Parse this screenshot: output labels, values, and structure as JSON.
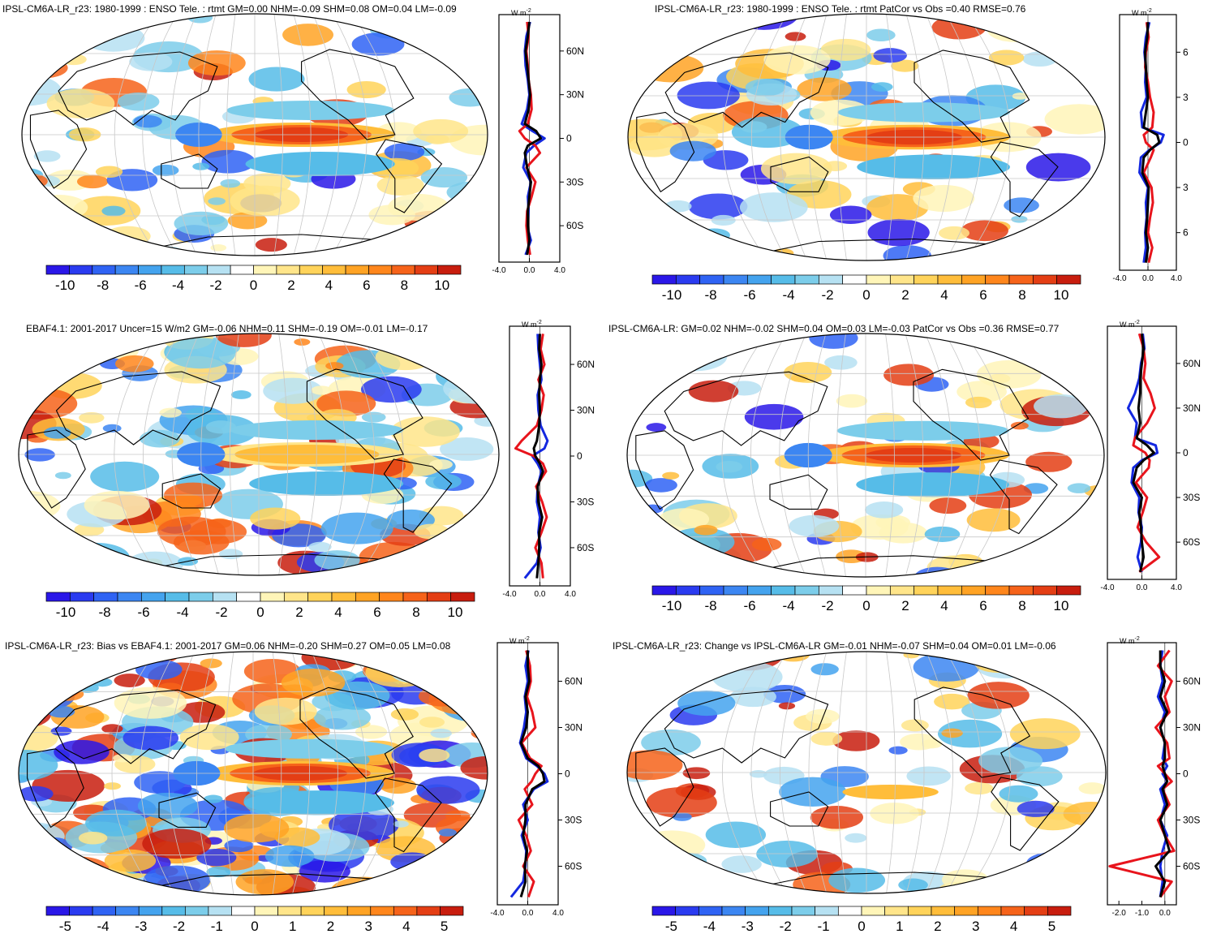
{
  "colors": {
    "palette": [
      "#2a17e8",
      "#2a3bf0",
      "#2f63f4",
      "#3c86f2",
      "#44a3ee",
      "#56bce8",
      "#7ccdea",
      "#b6e1f2",
      "#ffffff",
      "#fff5b8",
      "#ffe58a",
      "#ffd35a",
      "#ffbd3a",
      "#ffa324",
      "#ff861c",
      "#f6631a",
      "#e43e14",
      "#c81d0e"
    ],
    "land_line": "#000000",
    "grid": "#c8c8c8",
    "model_line": "#e8141c",
    "obs_line": "#1428e0",
    "total_line": "#000000"
  },
  "unit_label": "W m",
  "unit_exp": "-2",
  "chart_data": [
    {
      "id": "p1",
      "type": "heatmap",
      "title": "IPSL-CM6A-LR_r23: 1980-1999 : ENSO Tele. : rtmt GM=0.00 NHM=-0.09 SHM=0.08 OM=0.04 LM=-0.09",
      "colorbar": {
        "levels": [
          "-10",
          "-8",
          "-6",
          "-4",
          "-2",
          "0",
          "2",
          "4",
          "6",
          "8",
          "10"
        ],
        "range": [
          -11,
          11
        ]
      },
      "zonal": {
        "xlim": [
          -4.0,
          4.0
        ],
        "xticks": [
          "-4.0",
          "0.0",
          "4.0"
        ],
        "yticks": [
          "60N",
          "30N",
          "0",
          "30S",
          "60S"
        ],
        "lat": [
          80,
          70,
          60,
          50,
          40,
          30,
          20,
          10,
          5,
          0,
          -5,
          -10,
          -20,
          -30,
          -40,
          -50,
          -60,
          -70,
          -80
        ],
        "series": [
          {
            "name": "ocean",
            "values": [
              0.1,
              -0.4,
              -0.6,
              -0.5,
              -0.2,
              0.0,
              -0.3,
              -1.0,
              0.4,
              2.0,
              0.6,
              -0.4,
              -0.8,
              0.2,
              -0.2,
              -0.1,
              -0.3,
              0.2,
              -0.5
            ]
          },
          {
            "name": "land",
            "values": [
              -0.3,
              -0.1,
              -0.4,
              -0.2,
              -0.1,
              0.2,
              0.3,
              -0.2,
              -1.3,
              -0.6,
              0.8,
              1.4,
              -0.4,
              0.8,
              0.3,
              -0.3,
              -0.4,
              -0.2,
              0.1
            ]
          },
          {
            "name": "total",
            "values": [
              0.0,
              -0.2,
              -0.5,
              -0.3,
              -0.1,
              0.1,
              -0.1,
              -0.6,
              0.9,
              1.5,
              -0.2,
              -0.6,
              -0.3,
              0.2,
              0.0,
              -0.2,
              -0.2,
              0.0,
              -0.3
            ]
          }
        ]
      }
    },
    {
      "id": "p2",
      "type": "heatmap",
      "title": "IPSL-CM6A-LR_r23: 1980-1999 : ENSO Tele. : rtmt PatCor vs Obs =0.40 RMSE=0.76",
      "colorbar": {
        "levels": [
          "-10",
          "-8",
          "-6",
          "-4",
          "-2",
          "0",
          "2",
          "4",
          "6",
          "8",
          "10"
        ],
        "range": [
          -11,
          11
        ]
      },
      "zonal": {
        "xlim": [
          -4.0,
          4.0
        ],
        "xticks": [
          "-4.0",
          "0.0",
          "4.0"
        ],
        "yticks": [
          "6",
          "3",
          "0",
          "3",
          "6"
        ],
        "lat": [
          80,
          70,
          60,
          50,
          40,
          30,
          20,
          10,
          5,
          0,
          -5,
          -10,
          -20,
          -30,
          -40,
          -50,
          -60,
          -70,
          -80
        ],
        "series": [
          {
            "name": "ocean",
            "values": [
              0.2,
              -0.3,
              -0.5,
              -0.3,
              -0.4,
              -0.2,
              -1.0,
              -0.8,
              2.2,
              1.8,
              0.2,
              -1.0,
              -1.2,
              0.0,
              -0.3,
              -0.2,
              -0.4,
              -0.3,
              -0.6
            ]
          },
          {
            "name": "land",
            "values": [
              -0.2,
              0.1,
              -0.3,
              -0.4,
              0.0,
              0.3,
              0.8,
              0.6,
              -0.6,
              -0.3,
              0.8,
              0.4,
              -0.6,
              0.5,
              0.7,
              0.3,
              0.0,
              0.6,
              0.1
            ]
          },
          {
            "name": "total",
            "values": [
              0.0,
              -0.1,
              -0.4,
              -0.3,
              -0.2,
              0.0,
              -0.3,
              -0.6,
              1.3,
              1.6,
              0.3,
              -0.6,
              -0.8,
              0.1,
              0.0,
              -0.1,
              -0.3,
              0.0,
              -0.3
            ]
          }
        ]
      }
    },
    {
      "id": "p3",
      "type": "heatmap",
      "title": "EBAF4.1: 2001-2017 Uncer=15 W/m2 GM=-0.06 NHM=0.11 SHM=-0.19 OM=-0.01 LM=-0.17",
      "colorbar": {
        "levels": [
          "-10",
          "-8",
          "-6",
          "-4",
          "-2",
          "0",
          "2",
          "4",
          "6",
          "8",
          "10"
        ],
        "range": [
          -11,
          11
        ]
      },
      "zonal": {
        "xlim": [
          -4.0,
          4.0
        ],
        "xticks": [
          "-4.0",
          "0.0",
          "4.0"
        ],
        "yticks": [
          "60N",
          "30N",
          "0",
          "30S",
          "60S"
        ],
        "lat": [
          80,
          70,
          60,
          50,
          40,
          30,
          20,
          10,
          5,
          0,
          -5,
          -10,
          -20,
          -30,
          -40,
          -50,
          -60,
          -70,
          -80
        ],
        "series": [
          {
            "name": "ocean",
            "values": [
              -0.3,
              -0.2,
              0.0,
              0.2,
              -0.3,
              -0.2,
              0.1,
              1.0,
              0.6,
              -1.0,
              -0.3,
              0.2,
              -0.3,
              -0.4,
              0.0,
              -0.2,
              0.1,
              -0.4,
              -2.0
            ]
          },
          {
            "name": "land",
            "values": [
              0.4,
              0.1,
              0.6,
              -0.2,
              0.5,
              0.2,
              -0.4,
              -2.4,
              -3.2,
              -0.8,
              0.4,
              0.8,
              -0.5,
              0.3,
              0.9,
              0.2,
              -0.6,
              0.2,
              0.4
            ]
          },
          {
            "name": "total",
            "values": [
              0.0,
              -0.1,
              0.2,
              0.0,
              -0.1,
              0.0,
              -0.1,
              -0.4,
              -0.8,
              -0.6,
              0.0,
              0.4,
              -0.3,
              -0.2,
              0.3,
              -0.1,
              -0.1,
              -0.2,
              -0.4
            ]
          }
        ]
      }
    },
    {
      "id": "p4",
      "type": "heatmap",
      "title": "IPSL-CM6A-LR: GM=0.02 NHM=-0.02 SHM=0.04 OM=0.03 LM=-0.03 PatCor vs Obs =0.36 RMSE=0.77",
      "colorbar": {
        "levels": [
          "-10",
          "-8",
          "-6",
          "-4",
          "-2",
          "0",
          "2",
          "4",
          "6",
          "8",
          "10"
        ],
        "range": [
          -11,
          11
        ]
      },
      "zonal": {
        "xlim": [
          -4.0,
          4.0
        ],
        "xticks": [
          "-4.0",
          "0.0",
          "4.0"
        ],
        "yticks": [
          "60N",
          "30N",
          "0",
          "30S",
          "60S"
        ],
        "lat": [
          80,
          70,
          60,
          50,
          40,
          30,
          20,
          10,
          5,
          0,
          -5,
          -10,
          -20,
          -30,
          -40,
          -50,
          -60,
          -70,
          -80
        ],
        "series": [
          {
            "name": "ocean",
            "values": [
              0.1,
              0.3,
              -0.1,
              -0.3,
              -0.8,
              -1.6,
              -0.6,
              -0.8,
              1.6,
              1.8,
              0.0,
              -1.0,
              -1.2,
              -0.3,
              -0.4,
              0.0,
              -0.1,
              -0.5,
              0.0
            ]
          },
          {
            "name": "land",
            "values": [
              -0.3,
              0.2,
              0.4,
              0.2,
              1.0,
              1.5,
              0.6,
              -0.8,
              -1.0,
              0.4,
              0.9,
              0.8,
              -0.7,
              0.6,
              0.1,
              -0.5,
              0.5,
              2.0,
              -0.3
            ]
          },
          {
            "name": "total",
            "values": [
              0.0,
              0.2,
              0.0,
              -0.2,
              -0.2,
              -0.4,
              -0.2,
              -0.6,
              0.6,
              1.4,
              0.2,
              -0.6,
              -1.0,
              0.0,
              -0.3,
              -0.1,
              0.0,
              0.2,
              -0.2
            ]
          }
        ]
      }
    },
    {
      "id": "p5",
      "type": "heatmap",
      "title": "IPSL-CM6A-LR_r23: Bias vs EBAF4.1: 2001-2017 GM=0.06 NHM=-0.20 SHM=0.27 OM=0.05 LM=0.08",
      "colorbar": {
        "levels": [
          "-5",
          "-4",
          "-3",
          "-2",
          "-1",
          "0",
          "1",
          "2",
          "3",
          "4",
          "5"
        ],
        "range": [
          -5.5,
          5.5
        ]
      },
      "zonal": {
        "xlim": [
          -4.0,
          4.0
        ],
        "xticks": [
          "-4.0",
          "0.0",
          "4.0"
        ],
        "yticks": [
          "60N",
          "30N",
          "0",
          "30S",
          "60S"
        ],
        "lat": [
          80,
          70,
          60,
          50,
          40,
          30,
          20,
          10,
          5,
          0,
          -5,
          -10,
          -20,
          -30,
          -40,
          -50,
          -60,
          -70,
          -80
        ],
        "series": [
          {
            "name": "ocean",
            "values": [
              0.1,
              -0.3,
              0.0,
              -0.4,
              -0.2,
              -0.5,
              -1.0,
              -0.2,
              1.2,
              2.2,
              2.6,
              0.8,
              -0.6,
              0.0,
              -0.8,
              -0.2,
              -0.3,
              -0.6,
              -2.2
            ]
          },
          {
            "name": "land",
            "values": [
              -0.2,
              0.3,
              0.4,
              -0.1,
              0.6,
              1.0,
              -0.8,
              0.3,
              1.8,
              1.0,
              0.5,
              -0.4,
              0.6,
              -1.2,
              -0.2,
              0.4,
              -0.6,
              0.8,
              0.1
            ]
          },
          {
            "name": "total",
            "values": [
              0.0,
              0.0,
              0.2,
              -0.3,
              0.0,
              -0.2,
              -0.9,
              0.0,
              1.4,
              2.0,
              2.2,
              0.6,
              -0.3,
              -0.3,
              -0.6,
              -0.1,
              -0.4,
              -0.3,
              -0.9
            ]
          }
        ]
      }
    },
    {
      "id": "p6",
      "type": "heatmap",
      "title": "IPSL-CM6A-LR_r23: Change vs IPSL-CM6A-LR GM=-0.01 NHM=-0.07 SHM=0.04 OM=0.01 LM=-0.06",
      "colorbar": {
        "levels": [
          "-5",
          "-4",
          "-3",
          "-2",
          "-1",
          "0",
          "1",
          "2",
          "3",
          "4",
          "5"
        ],
        "range": [
          -5.5,
          5.5
        ]
      },
      "zonal": {
        "xlim": [
          -2.5,
          0.5
        ],
        "xticks": [
          "-2.0",
          "-1.0",
          "0.0"
        ],
        "yticks": [
          "60N",
          "30N",
          "0",
          "30S",
          "60S"
        ],
        "lat": [
          80,
          70,
          60,
          50,
          40,
          30,
          20,
          10,
          5,
          0,
          -5,
          -10,
          -20,
          -30,
          -40,
          -50,
          -60,
          -70,
          -80
        ],
        "series": [
          {
            "name": "ocean",
            "values": [
              -0.1,
              -0.2,
              -0.1,
              -0.3,
              0.0,
              -0.2,
              0.0,
              -0.1,
              0.1,
              -0.1,
              0.1,
              -0.2,
              0.0,
              -0.2,
              0.1,
              -0.1,
              -0.2,
              -0.1,
              -0.2
            ]
          },
          {
            "name": "land",
            "values": [
              0.2,
              -0.3,
              0.3,
              0.0,
              0.2,
              -0.4,
              0.1,
              0.2,
              -0.3,
              0.0,
              0.3,
              -0.1,
              0.2,
              -0.3,
              0.0,
              0.4,
              -2.4,
              0.3,
              -0.2
            ]
          },
          {
            "name": "total",
            "values": [
              -0.2,
              -0.2,
              0.0,
              -0.2,
              0.1,
              -0.2,
              0.0,
              0.0,
              -0.1,
              0.0,
              0.1,
              -0.1,
              0.1,
              -0.2,
              0.0,
              0.2,
              -0.4,
              0.0,
              -0.2
            ]
          }
        ]
      }
    }
  ]
}
